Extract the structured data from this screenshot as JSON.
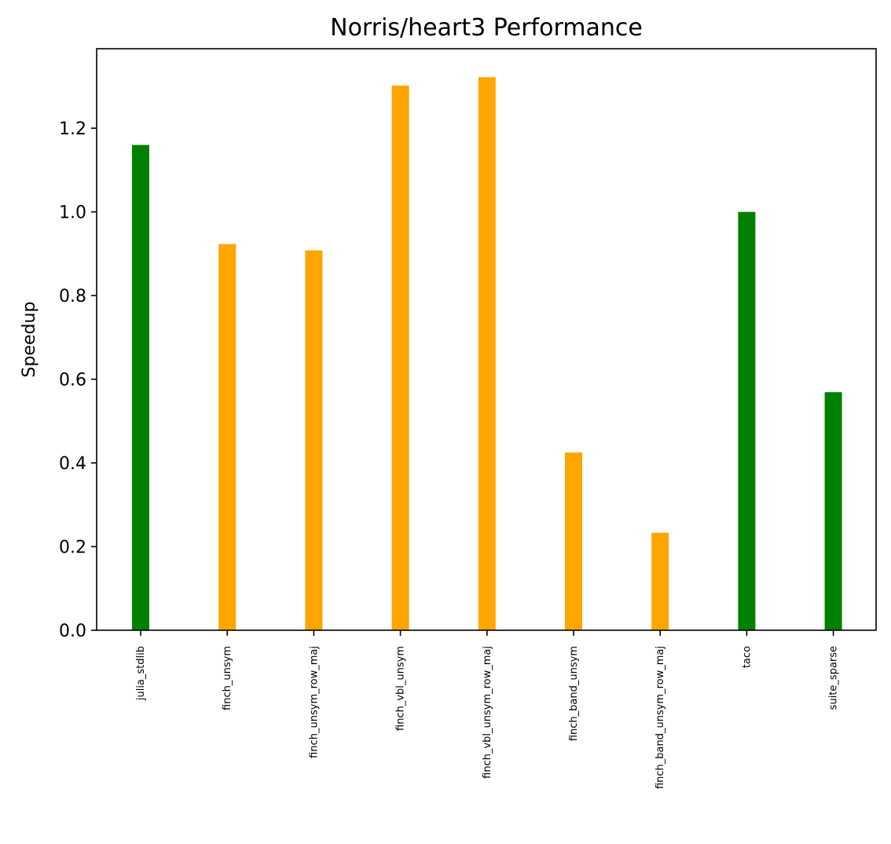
{
  "chart_data": {
    "type": "bar",
    "title": "Norris/heart3 Performance",
    "xlabel": "",
    "ylabel": "Speedup",
    "categories": [
      "julia_stdlib",
      "finch_unsym",
      "finch_unsym_row_maj",
      "finch_vbl_unsym",
      "finch_vbl_unsym_row_maj",
      "finch_band_unsym",
      "finch_band_unsym_row_maj",
      "taco",
      "suite_sparse"
    ],
    "values": [
      1.16,
      0.923,
      0.908,
      1.302,
      1.322,
      0.425,
      0.233,
      1.0,
      0.569
    ],
    "colors": [
      "#008000",
      "#ffa500",
      "#ffa500",
      "#ffa500",
      "#ffa500",
      "#ffa500",
      "#ffa500",
      "#008000",
      "#008000"
    ],
    "ylim": [
      0,
      1.39
    ],
    "yticks": [
      "0.0",
      "0.2",
      "0.4",
      "0.6",
      "0.8",
      "1.0",
      "1.2"
    ],
    "grid": false,
    "legend": "none"
  }
}
